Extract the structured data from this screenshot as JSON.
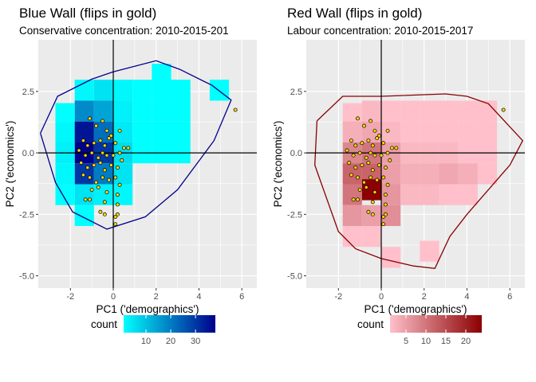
{
  "chart_data": [
    {
      "type": "heatmap",
      "title": "Blue Wall (flips in gold)",
      "subtitle": "Conservative concentration: 2010-2015-201",
      "xlabel": "PC1 ('demographics')",
      "ylabel": "PC2 ('economics')",
      "xlim": [
        -3.5,
        6.7
      ],
      "ylim": [
        -5.5,
        4.6
      ],
      "xticks": [
        -2,
        0,
        2,
        4,
        6
      ],
      "xtick_labels": [
        "-2",
        "0",
        "2",
        "4",
        "6"
      ],
      "yticks": [
        2.5,
        0.0,
        -2.5,
        -5.0
      ],
      "ytick_labels": [
        "2.5",
        "0.0",
        "-2.5",
        "-5.0"
      ],
      "grid": true,
      "bin_width": 0.9,
      "bin_height": 0.85,
      "color_low": "#00FFFF",
      "color_high": "#00008B",
      "legend": {
        "title": "count",
        "position": "bottom",
        "min": 1,
        "max": 38,
        "ticks": [
          10,
          20,
          30
        ],
        "tick_labels": [
          "10",
          "20",
          "30"
        ]
      },
      "cells": [
        {
          "x": 2.25,
          "y": 3.2,
          "count": 1
        },
        {
          "x": -1.35,
          "y": 2.55,
          "count": 2
        },
        {
          "x": -0.45,
          "y": 2.55,
          "count": 5
        },
        {
          "x": 0.45,
          "y": 2.55,
          "count": 2
        },
        {
          "x": 1.35,
          "y": 2.55,
          "count": 1
        },
        {
          "x": 2.25,
          "y": 2.55,
          "count": 1
        },
        {
          "x": 3.15,
          "y": 2.55,
          "count": 1
        },
        {
          "x": 4.95,
          "y": 2.55,
          "count": 1
        },
        {
          "x": -1.35,
          "y": 1.7,
          "count": 18
        },
        {
          "x": -0.45,
          "y": 1.7,
          "count": 14
        },
        {
          "x": 0.45,
          "y": 1.7,
          "count": 3
        },
        {
          "x": 1.35,
          "y": 1.7,
          "count": 1
        },
        {
          "x": -2.25,
          "y": 1.6,
          "count": 1
        },
        {
          "x": 2.25,
          "y": 1.7,
          "count": 1
        },
        {
          "x": 3.15,
          "y": 1.7,
          "count": 1
        },
        {
          "x": -2.25,
          "y": 0.8,
          "count": 2
        },
        {
          "x": -1.35,
          "y": 0.85,
          "count": 35
        },
        {
          "x": -0.45,
          "y": 0.85,
          "count": 22
        },
        {
          "x": 0.45,
          "y": 0.85,
          "count": 4
        },
        {
          "x": 1.35,
          "y": 0.85,
          "count": 1
        },
        {
          "x": 2.25,
          "y": 0.85,
          "count": 1
        },
        {
          "x": 3.15,
          "y": 0.85,
          "count": 1
        },
        {
          "x": -1.35,
          "y": 0.0,
          "count": 38
        },
        {
          "x": -0.45,
          "y": 0.0,
          "count": 30
        },
        {
          "x": 0.45,
          "y": 0.0,
          "count": 6
        },
        {
          "x": -2.25,
          "y": 0.0,
          "count": 3
        },
        {
          "x": 1.35,
          "y": 0.0,
          "count": 1
        },
        {
          "x": 2.25,
          "y": 0.0,
          "count": 1
        },
        {
          "x": 3.15,
          "y": 0.0,
          "count": 1
        },
        {
          "x": -1.35,
          "y": -0.85,
          "count": 30
        },
        {
          "x": -0.45,
          "y": -0.85,
          "count": 20
        },
        {
          "x": 0.45,
          "y": -0.85,
          "count": 5
        },
        {
          "x": -2.25,
          "y": -0.85,
          "count": 2
        },
        {
          "x": -1.35,
          "y": -1.7,
          "count": 5
        },
        {
          "x": -0.45,
          "y": -1.7,
          "count": 3
        },
        {
          "x": 0.45,
          "y": -1.7,
          "count": 2
        },
        {
          "x": -2.25,
          "y": -1.7,
          "count": 1
        },
        {
          "x": -1.35,
          "y": -2.55,
          "count": 1
        }
      ],
      "hull": [
        [
          -3.4,
          0.8
        ],
        [
          -2.6,
          2.3
        ],
        [
          -1.0,
          3.0
        ],
        [
          0.0,
          3.3
        ],
        [
          2.0,
          3.75
        ],
        [
          3.1,
          3.4
        ],
        [
          4.6,
          2.75
        ],
        [
          5.5,
          2.15
        ],
        [
          4.7,
          0.5
        ],
        [
          3.0,
          -1.5
        ],
        [
          1.5,
          -2.6
        ],
        [
          -0.3,
          -3.1
        ],
        [
          -1.9,
          -2.4
        ],
        [
          -2.7,
          -1.2
        ],
        [
          -3.4,
          0.8
        ]
      ],
      "points": [
        [
          -1.1,
          1.4
        ],
        [
          -0.8,
          1.1
        ],
        [
          -0.5,
          1.3
        ],
        [
          -0.3,
          0.9
        ],
        [
          -0.1,
          0.7
        ],
        [
          0.3,
          0.9
        ],
        [
          -1.4,
          0.5
        ],
        [
          -1.2,
          0.3
        ],
        [
          -0.9,
          0.4
        ],
        [
          -0.6,
          0.5
        ],
        [
          -0.4,
          0.3
        ],
        [
          -0.2,
          0.6
        ],
        [
          0.1,
          0.4
        ],
        [
          0.5,
          0.2
        ],
        [
          0.7,
          0.2
        ],
        [
          -1.6,
          0.1
        ],
        [
          -1.3,
          -0.1
        ],
        [
          -1.0,
          0.0
        ],
        [
          -0.7,
          -0.2
        ],
        [
          -0.5,
          0.0
        ],
        [
          -0.3,
          -0.1
        ],
        [
          0.0,
          -0.1
        ],
        [
          0.3,
          0.0
        ],
        [
          -1.5,
          -0.4
        ],
        [
          -1.2,
          -0.6
        ],
        [
          -0.9,
          -0.5
        ],
        [
          -0.6,
          -0.4
        ],
        [
          -0.4,
          -0.7
        ],
        [
          -0.1,
          -0.5
        ],
        [
          0.2,
          -0.6
        ],
        [
          0.4,
          -0.3
        ],
        [
          -1.4,
          -0.9
        ],
        [
          -1.1,
          -1.0
        ],
        [
          -0.8,
          -1.2
        ],
        [
          -0.5,
          -1.0
        ],
        [
          -0.2,
          -1.1
        ],
        [
          0.1,
          -1.0
        ],
        [
          0.3,
          -1.3
        ],
        [
          -1.0,
          -1.5
        ],
        [
          -0.7,
          -1.4
        ],
        [
          -0.3,
          -1.6
        ],
        [
          0.2,
          -1.7
        ],
        [
          -1.3,
          -1.9
        ],
        [
          -1.1,
          -1.9
        ],
        [
          -0.4,
          -2.0
        ],
        [
          0.2,
          -2.1
        ],
        [
          -0.6,
          -2.4
        ],
        [
          -0.4,
          -2.5
        ],
        [
          0.2,
          -2.5
        ],
        [
          0.1,
          -2.6
        ],
        [
          0.1,
          -2.9
        ],
        [
          5.7,
          1.75
        ]
      ]
    },
    {
      "type": "heatmap",
      "title": "Red Wall (flips in gold)",
      "subtitle": "Labour concentration: 2010-2015-2017",
      "xlabel": "PC1 ('demographics')",
      "ylabel": "PC2 ('economics')",
      "xlim": [
        -3.5,
        6.7
      ],
      "ylim": [
        -5.5,
        4.6
      ],
      "xticks": [
        -2,
        0,
        2,
        4,
        6
      ],
      "xtick_labels": [
        "-2",
        "0",
        "2",
        "4",
        "6"
      ],
      "yticks": [
        2.5,
        0.0,
        -2.5,
        -5.0
      ],
      "ytick_labels": [
        "2.5",
        "0.0",
        "-2.5",
        "-5.0"
      ],
      "grid": true,
      "bin_width": 0.9,
      "bin_height": 0.85,
      "color_low": "#FFC0CB",
      "color_high": "#8B0000",
      "legend": {
        "title": "count",
        "position": "bottom",
        "min": 1,
        "max": 24,
        "ticks": [
          5,
          10,
          15,
          20
        ],
        "tick_labels": [
          "5",
          "10",
          "15",
          "20"
        ]
      },
      "cells": [
        {
          "x": -1.35,
          "y": 1.6,
          "count": 1
        },
        {
          "x": -0.45,
          "y": 1.7,
          "count": 2
        },
        {
          "x": 0.45,
          "y": 1.7,
          "count": 1
        },
        {
          "x": 1.35,
          "y": 1.7,
          "count": 1
        },
        {
          "x": 2.25,
          "y": 1.7,
          "count": 1
        },
        {
          "x": 3.15,
          "y": 1.7,
          "count": 1
        },
        {
          "x": 4.05,
          "y": 1.7,
          "count": 1
        },
        {
          "x": 4.95,
          "y": 1.7,
          "count": 1
        },
        {
          "x": -1.35,
          "y": 0.85,
          "count": 3
        },
        {
          "x": -0.45,
          "y": 0.85,
          "count": 4
        },
        {
          "x": 0.45,
          "y": 0.85,
          "count": 2
        },
        {
          "x": 1.35,
          "y": 0.85,
          "count": 1
        },
        {
          "x": 2.25,
          "y": 0.85,
          "count": 1
        },
        {
          "x": 3.15,
          "y": 0.85,
          "count": 1
        },
        {
          "x": 4.05,
          "y": 0.85,
          "count": 1
        },
        {
          "x": 4.95,
          "y": 0.85,
          "count": 1
        },
        {
          "x": -1.35,
          "y": 0.0,
          "count": 8
        },
        {
          "x": -0.45,
          "y": 0.0,
          "count": 10
        },
        {
          "x": 0.45,
          "y": 0.0,
          "count": 5
        },
        {
          "x": 1.35,
          "y": 0.0,
          "count": 2
        },
        {
          "x": 2.25,
          "y": 0.0,
          "count": 2
        },
        {
          "x": 3.15,
          "y": 0.0,
          "count": 2
        },
        {
          "x": 4.05,
          "y": 0.0,
          "count": 1
        },
        {
          "x": 4.95,
          "y": 0.0,
          "count": 1
        },
        {
          "x": -1.35,
          "y": -0.85,
          "count": 12
        },
        {
          "x": -0.45,
          "y": -0.85,
          "count": 12
        },
        {
          "x": 0.45,
          "y": -0.85,
          "count": 5
        },
        {
          "x": 1.35,
          "y": -0.85,
          "count": 3
        },
        {
          "x": 2.25,
          "y": -0.85,
          "count": 3
        },
        {
          "x": 3.15,
          "y": -0.85,
          "count": 4
        },
        {
          "x": 4.05,
          "y": -0.85,
          "count": 3
        },
        {
          "x": 4.95,
          "y": -0.85,
          "count": 1
        },
        {
          "x": -1.35,
          "y": -1.7,
          "count": 10
        },
        {
          "x": -0.45,
          "y": -1.5,
          "count": 24
        },
        {
          "x": 0.45,
          "y": -1.7,
          "count": 6
        },
        {
          "x": 1.35,
          "y": -1.7,
          "count": 2
        },
        {
          "x": 2.25,
          "y": -1.7,
          "count": 2
        },
        {
          "x": 3.15,
          "y": -1.7,
          "count": 1
        },
        {
          "x": 4.05,
          "y": -1.7,
          "count": 1
        },
        {
          "x": -1.35,
          "y": -2.55,
          "count": 6
        },
        {
          "x": -0.45,
          "y": -2.55,
          "count": 5
        },
        {
          "x": 0.45,
          "y": -2.55,
          "count": 7
        },
        {
          "x": -1.35,
          "y": -3.4,
          "count": 1
        },
        {
          "x": -0.45,
          "y": -3.4,
          "count": 1
        },
        {
          "x": 0.45,
          "y": -4.25,
          "count": 1
        },
        {
          "x": 2.25,
          "y": -4.0,
          "count": 1
        }
      ],
      "hull": [
        [
          -3.0,
          1.3
        ],
        [
          -1.8,
          2.3
        ],
        [
          0.0,
          2.3
        ],
        [
          3.0,
          2.4
        ],
        [
          4.0,
          2.3
        ],
        [
          5.0,
          2.0
        ],
        [
          6.6,
          0.5
        ],
        [
          6.0,
          -0.5
        ],
        [
          5.0,
          -1.5
        ],
        [
          4.0,
          -2.5
        ],
        [
          3.2,
          -3.4
        ],
        [
          2.5,
          -4.7
        ],
        [
          1.5,
          -4.6
        ],
        [
          0.0,
          -4.3
        ],
        [
          -1.2,
          -3.9
        ],
        [
          -2.0,
          -3.2
        ],
        [
          -3.1,
          -0.5
        ],
        [
          -3.0,
          1.3
        ]
      ],
      "points": [
        [
          -1.1,
          1.4
        ],
        [
          -0.8,
          1.1
        ],
        [
          -0.5,
          1.3
        ],
        [
          -0.3,
          0.9
        ],
        [
          -0.1,
          0.7
        ],
        [
          0.3,
          0.9
        ],
        [
          -1.4,
          0.5
        ],
        [
          -1.2,
          0.3
        ],
        [
          -0.9,
          0.4
        ],
        [
          -0.6,
          0.5
        ],
        [
          -0.4,
          0.3
        ],
        [
          -0.2,
          0.6
        ],
        [
          0.1,
          0.4
        ],
        [
          0.5,
          0.2
        ],
        [
          0.7,
          0.2
        ],
        [
          -1.6,
          0.1
        ],
        [
          -1.3,
          -0.1
        ],
        [
          -1.0,
          0.0
        ],
        [
          -0.7,
          -0.2
        ],
        [
          -0.5,
          0.0
        ],
        [
          -0.3,
          -0.1
        ],
        [
          0.0,
          -0.1
        ],
        [
          0.3,
          0.0
        ],
        [
          -1.5,
          -0.4
        ],
        [
          -1.2,
          -0.6
        ],
        [
          -0.9,
          -0.5
        ],
        [
          -0.6,
          -0.4
        ],
        [
          -0.4,
          -0.7
        ],
        [
          -0.1,
          -0.5
        ],
        [
          0.2,
          -0.6
        ],
        [
          0.4,
          -0.3
        ],
        [
          -1.4,
          -0.9
        ],
        [
          -1.1,
          -1.0
        ],
        [
          -0.8,
          -1.2
        ],
        [
          -0.5,
          -1.0
        ],
        [
          -0.2,
          -1.1
        ],
        [
          0.1,
          -1.0
        ],
        [
          0.3,
          -1.3
        ],
        [
          -1.0,
          -1.5
        ],
        [
          -0.7,
          -1.4
        ],
        [
          -0.3,
          -1.6
        ],
        [
          0.2,
          -1.7
        ],
        [
          -1.3,
          -1.9
        ],
        [
          -1.1,
          -1.9
        ],
        [
          -0.4,
          -2.0
        ],
        [
          0.2,
          -2.1
        ],
        [
          -0.6,
          -2.4
        ],
        [
          -0.4,
          -2.5
        ],
        [
          0.2,
          -2.5
        ],
        [
          0.1,
          -2.6
        ],
        [
          0.1,
          -2.9
        ],
        [
          5.7,
          1.75
        ]
      ]
    }
  ],
  "colors": {
    "panel_background": "#EBEBEB",
    "grid": "#FFFFFF",
    "blue_hull": "#00008B",
    "red_hull": "#8B0000",
    "point_fill": "#FFD700",
    "point_stroke": "#000000"
  }
}
